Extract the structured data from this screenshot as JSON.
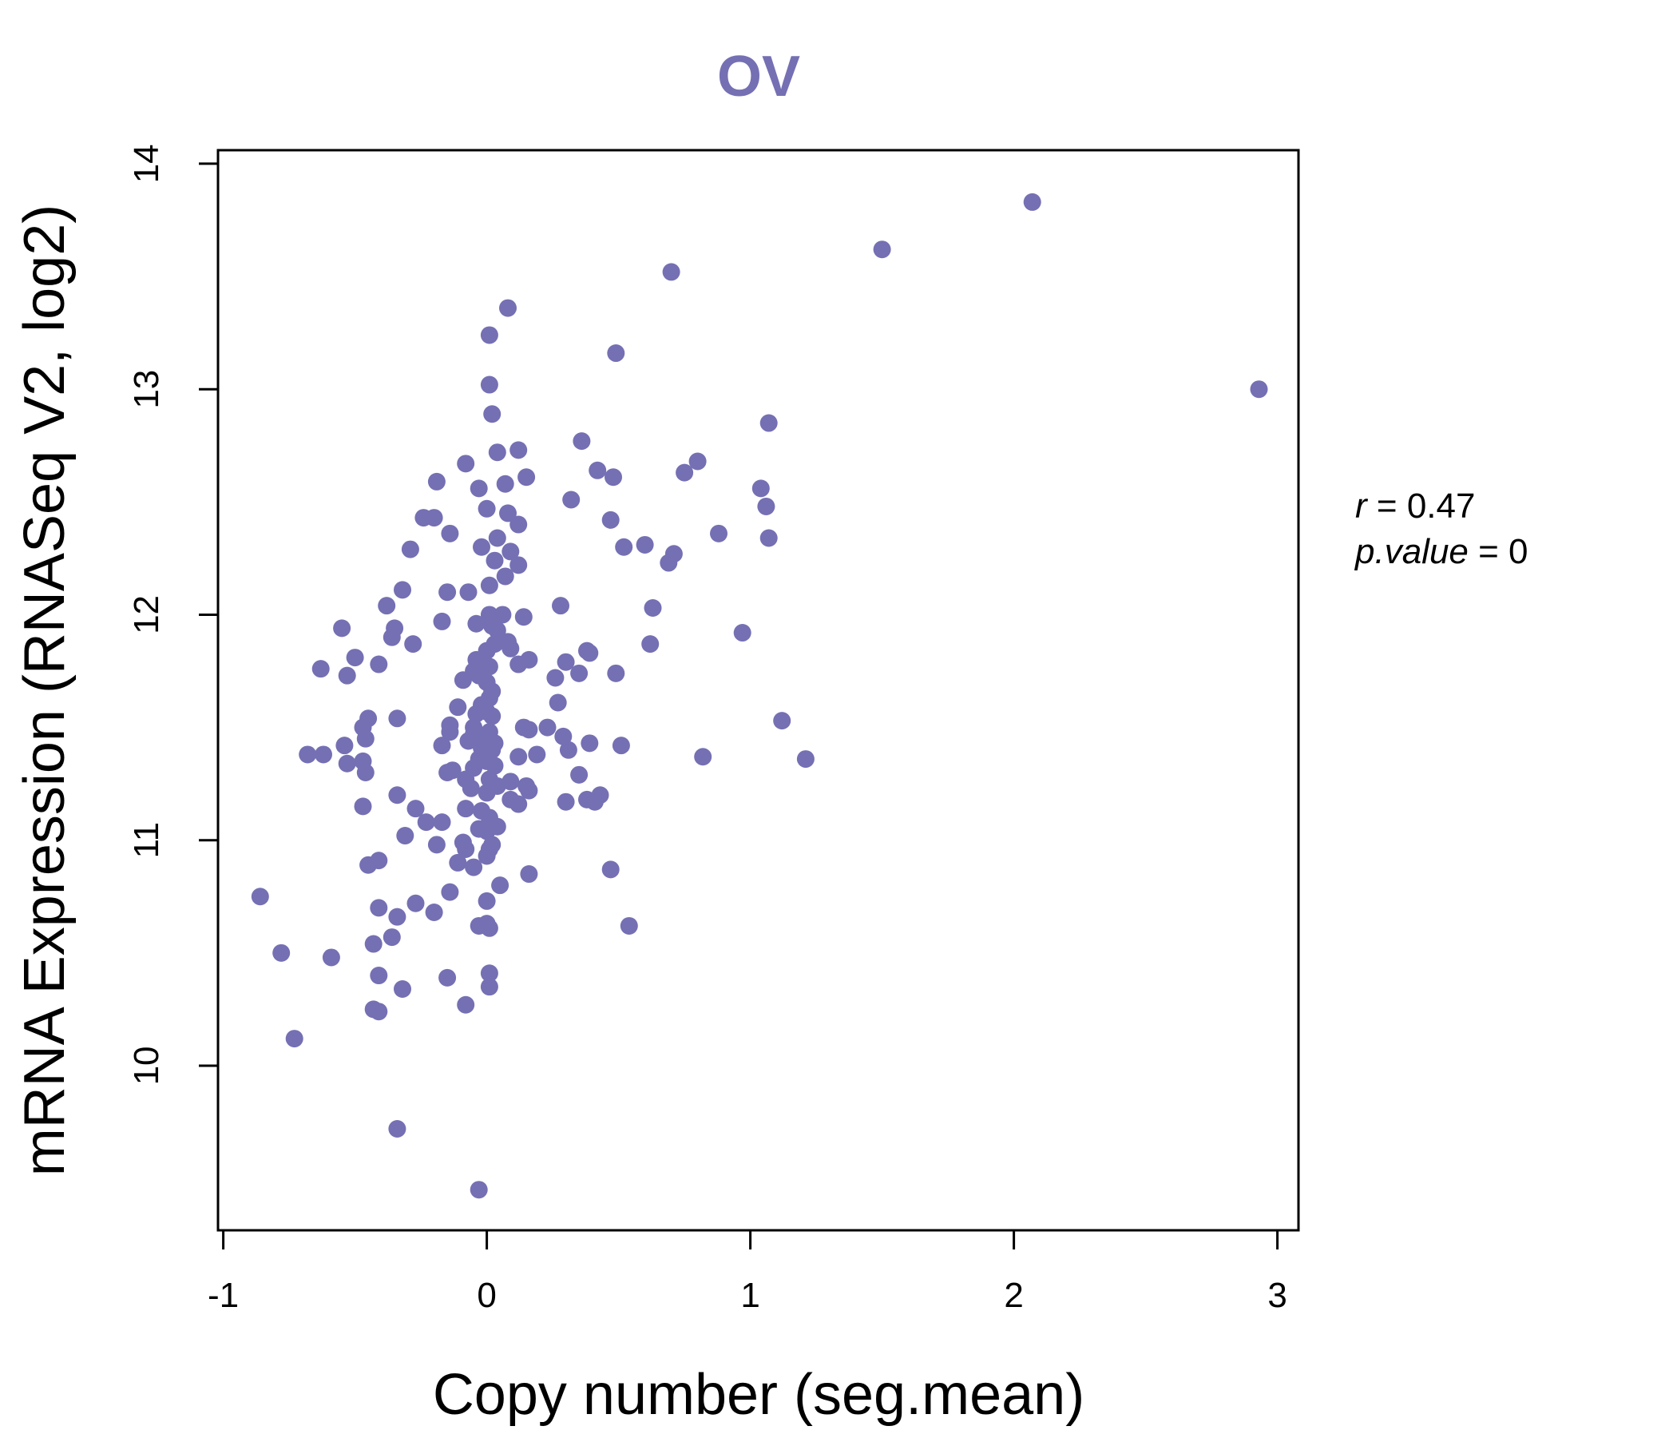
{
  "chart_data": {
    "type": "scatter",
    "title": "OV",
    "xlabel": "Copy number (seg.mean)",
    "ylabel": "mRNA Expression (RNASeq V2, log2)",
    "xlim": [
      -1.02,
      3.08
    ],
    "ylim": [
      9.27,
      14.06
    ],
    "x_ticks": [
      -1,
      0,
      1,
      2,
      3
    ],
    "x_tick_labels": [
      "-1",
      "0",
      "1",
      "2",
      "3"
    ],
    "y_ticks": [
      10,
      11,
      12,
      13,
      14
    ],
    "y_tick_labels": [
      "10",
      "11",
      "12",
      "13",
      "14"
    ],
    "grid": false,
    "legend": "none",
    "point_color": "#7570b3",
    "title_color": "#7570b3",
    "annotation": {
      "r_label": "r",
      "r_value": "0.47",
      "p_label": "p.value",
      "p_value": "0"
    },
    "points": [
      [
        2.07,
        13.83
      ],
      [
        1.5,
        13.62
      ],
      [
        2.93,
        13.0
      ],
      [
        0.7,
        13.52
      ],
      [
        0.08,
        13.36
      ],
      [
        0.01,
        13.24
      ],
      [
        0.49,
        13.16
      ],
      [
        0.01,
        13.02
      ],
      [
        0.02,
        12.89
      ],
      [
        1.07,
        12.85
      ],
      [
        0.36,
        12.77
      ],
      [
        0.12,
        12.73
      ],
      [
        0.04,
        12.72
      ],
      [
        -0.08,
        12.67
      ],
      [
        0.8,
        12.68
      ],
      [
        0.75,
        12.63
      ],
      [
        0.42,
        12.64
      ],
      [
        0.48,
        12.61
      ],
      [
        0.15,
        12.61
      ],
      [
        0.07,
        12.58
      ],
      [
        -0.19,
        12.59
      ],
      [
        -0.03,
        12.56
      ],
      [
        1.04,
        12.56
      ],
      [
        1.06,
        12.48
      ],
      [
        0.32,
        12.51
      ],
      [
        0.0,
        12.47
      ],
      [
        -0.24,
        12.43
      ],
      [
        -0.2,
        12.43
      ],
      [
        0.47,
        12.42
      ],
      [
        0.12,
        12.4
      ],
      [
        0.08,
        12.45
      ],
      [
        0.88,
        12.36
      ],
      [
        0.04,
        12.34
      ],
      [
        -0.14,
        12.36
      ],
      [
        1.07,
        12.34
      ],
      [
        0.52,
        12.3
      ],
      [
        0.6,
        12.31
      ],
      [
        -0.29,
        12.29
      ],
      [
        0.09,
        12.28
      ],
      [
        -0.02,
        12.3
      ],
      [
        0.71,
        12.27
      ],
      [
        0.69,
        12.23
      ],
      [
        0.12,
        12.22
      ],
      [
        0.03,
        12.24
      ],
      [
        0.07,
        12.17
      ],
      [
        0.01,
        12.13
      ],
      [
        -0.32,
        12.11
      ],
      [
        -0.15,
        12.1
      ],
      [
        -0.07,
        12.1
      ],
      [
        -0.38,
        12.04
      ],
      [
        0.28,
        12.04
      ],
      [
        0.63,
        12.03
      ],
      [
        0.01,
        12.0
      ],
      [
        0.06,
        12.0
      ],
      [
        0.14,
        11.99
      ],
      [
        -0.17,
        11.97
      ],
      [
        -0.04,
        11.96
      ],
      [
        -0.55,
        11.94
      ],
      [
        -0.35,
        11.94
      ],
      [
        0.02,
        11.95
      ],
      [
        0.04,
        11.93
      ],
      [
        0.97,
        11.92
      ],
      [
        -0.36,
        11.9
      ],
      [
        0.08,
        11.88
      ],
      [
        0.03,
        11.87
      ],
      [
        -0.28,
        11.87
      ],
      [
        0.62,
        11.87
      ],
      [
        0.09,
        11.85
      ],
      [
        0.0,
        11.84
      ],
      [
        0.38,
        11.84
      ],
      [
        0.39,
        11.83
      ],
      [
        -0.5,
        11.81
      ],
      [
        0.16,
        11.8
      ],
      [
        -0.04,
        11.8
      ],
      [
        0.3,
        11.79
      ],
      [
        -0.41,
        11.78
      ],
      [
        0.12,
        11.78
      ],
      [
        0.01,
        11.77
      ],
      [
        -0.63,
        11.76
      ],
      [
        -0.05,
        11.75
      ],
      [
        0.35,
        11.74
      ],
      [
        0.49,
        11.74
      ],
      [
        -0.53,
        11.73
      ],
      [
        -0.03,
        11.73
      ],
      [
        0.26,
        11.72
      ],
      [
        -0.09,
        11.71
      ],
      [
        0.0,
        11.7
      ],
      [
        0.02,
        11.66
      ],
      [
        0.01,
        11.63
      ],
      [
        -0.02,
        11.6
      ],
      [
        0.27,
        11.61
      ],
      [
        -0.11,
        11.59
      ],
      [
        -0.04,
        11.56
      ],
      [
        0.0,
        11.57
      ],
      [
        0.02,
        11.55
      ],
      [
        -0.45,
        11.54
      ],
      [
        -0.34,
        11.54
      ],
      [
        1.12,
        11.53
      ],
      [
        -0.47,
        11.5
      ],
      [
        0.14,
        11.5
      ],
      [
        -0.14,
        11.51
      ],
      [
        -0.05,
        11.5
      ],
      [
        0.01,
        11.48
      ],
      [
        0.23,
        11.5
      ],
      [
        0.16,
        11.49
      ],
      [
        -0.05,
        11.47
      ],
      [
        -0.14,
        11.48
      ],
      [
        0.0,
        11.46
      ],
      [
        0.29,
        11.46
      ],
      [
        0.01,
        11.44
      ],
      [
        -0.46,
        11.45
      ],
      [
        -0.07,
        11.44
      ],
      [
        0.03,
        11.43
      ],
      [
        0.39,
        11.43
      ],
      [
        0.51,
        11.42
      ],
      [
        -0.54,
        11.42
      ],
      [
        -0.17,
        11.42
      ],
      [
        -0.02,
        11.41
      ],
      [
        0.02,
        11.4
      ],
      [
        0.31,
        11.4
      ],
      [
        -0.68,
        11.38
      ],
      [
        -0.62,
        11.38
      ],
      [
        0.19,
        11.38
      ],
      [
        0.12,
        11.37
      ],
      [
        0.82,
        11.37
      ],
      [
        -0.47,
        11.35
      ],
      [
        -0.03,
        11.36
      ],
      [
        0.0,
        11.35
      ],
      [
        1.21,
        11.36
      ],
      [
        -0.53,
        11.34
      ],
      [
        0.03,
        11.33
      ],
      [
        -0.05,
        11.32
      ],
      [
        -0.13,
        11.31
      ],
      [
        -0.46,
        11.3
      ],
      [
        -0.15,
        11.3
      ],
      [
        0.35,
        11.29
      ],
      [
        -0.08,
        11.27
      ],
      [
        0.01,
        11.27
      ],
      [
        0.09,
        11.26
      ],
      [
        0.04,
        11.24
      ],
      [
        0.15,
        11.24
      ],
      [
        -0.06,
        11.23
      ],
      [
        0.16,
        11.22
      ],
      [
        0.0,
        11.21
      ],
      [
        -0.34,
        11.2
      ],
      [
        0.43,
        11.2
      ],
      [
        0.38,
        11.18
      ],
      [
        0.09,
        11.18
      ],
      [
        0.41,
        11.17
      ],
      [
        0.3,
        11.17
      ],
      [
        0.12,
        11.16
      ],
      [
        -0.47,
        11.15
      ],
      [
        -0.08,
        11.14
      ],
      [
        -0.27,
        11.14
      ],
      [
        -0.02,
        11.13
      ],
      [
        0.01,
        11.1
      ],
      [
        -0.23,
        11.08
      ],
      [
        -0.17,
        11.08
      ],
      [
        0.04,
        11.06
      ],
      [
        -0.03,
        11.05
      ],
      [
        0.0,
        11.04
      ],
      [
        -0.31,
        11.02
      ],
      [
        -0.09,
        10.99
      ],
      [
        0.02,
        10.98
      ],
      [
        -0.19,
        10.98
      ],
      [
        0.01,
        10.96
      ],
      [
        -0.08,
        10.96
      ],
      [
        0.0,
        10.93
      ],
      [
        -0.41,
        10.91
      ],
      [
        -0.45,
        10.89
      ],
      [
        -0.11,
        10.9
      ],
      [
        -0.05,
        10.88
      ],
      [
        0.47,
        10.87
      ],
      [
        0.16,
        10.85
      ],
      [
        0.05,
        10.8
      ],
      [
        -0.14,
        10.77
      ],
      [
        -0.86,
        10.75
      ],
      [
        0.0,
        10.73
      ],
      [
        -0.27,
        10.72
      ],
      [
        -0.41,
        10.7
      ],
      [
        -0.2,
        10.68
      ],
      [
        -0.34,
        10.66
      ],
      [
        0.0,
        10.63
      ],
      [
        -0.03,
        10.62
      ],
      [
        0.54,
        10.62
      ],
      [
        0.01,
        10.61
      ],
      [
        -0.36,
        10.57
      ],
      [
        -0.43,
        10.54
      ],
      [
        -0.78,
        10.5
      ],
      [
        -0.59,
        10.48
      ],
      [
        0.01,
        10.41
      ],
      [
        -0.41,
        10.4
      ],
      [
        -0.15,
        10.39
      ],
      [
        0.01,
        10.35
      ],
      [
        -0.32,
        10.34
      ],
      [
        -0.08,
        10.27
      ],
      [
        -0.43,
        10.25
      ],
      [
        -0.41,
        10.24
      ],
      [
        -0.73,
        10.12
      ],
      [
        -0.34,
        9.72
      ],
      [
        -0.03,
        9.45
      ]
    ]
  }
}
